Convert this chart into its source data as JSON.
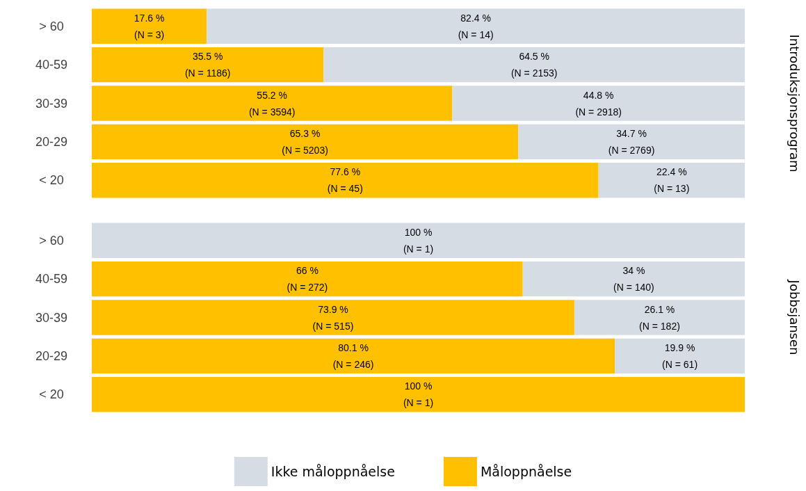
{
  "chart_data": [
    {
      "type": "bar",
      "orientation": "horizontal",
      "stacked": true,
      "y2label": "Introduksjonsprogram",
      "categories": [
        "> 60",
        "40-59",
        "30-39",
        "20-29",
        "< 20"
      ],
      "xlim": [
        0,
        100
      ],
      "tick_labels": "y",
      "legend": false,
      "series": [
        {
          "color": "#ffc000",
          "values": [
            17.6,
            35.5,
            55.2,
            65.3,
            77.6
          ],
          "value_labels": [
            "17.6 %\n(N = 3)",
            "35.5 %\n(N = 1186)",
            "55.2 %\n(N = 3594)",
            "65.3 %\n(N = 5203)",
            "77.6 %\n(N = 45)"
          ]
        },
        {
          "color": "#d6dce4",
          "values": [
            82.4,
            64.5,
            44.8,
            34.7,
            22.4
          ],
          "value_labels": [
            "82.4 %\n(N = 14)",
            "64.5 %\n(N = 2153)",
            "44.8 %\n(N = 2918)",
            "34.7 %\n(N = 2769)",
            "22.4 %\n(N = 13)"
          ]
        }
      ]
    },
    {
      "type": "bar",
      "orientation": "horizontal",
      "stacked": true,
      "y2label": "Jobbsjansen",
      "categories": [
        "> 60",
        "40-59",
        "30-39",
        "20-29",
        "< 20"
      ],
      "xlim": [
        0,
        100
      ],
      "tick_labels": "y",
      "legend": "bottom",
      "series": [
        {
          "name": "Måloppnåelse",
          "color": "#ffc000",
          "values": [
            0,
            66,
            73.9,
            80.1,
            100
          ],
          "value_labels": [
            null,
            "66 %\n(N = 272)",
            "73.9 %\n(N = 515)",
            "80.1 %\n(N = 246)",
            "100 %\n(N = 1)"
          ]
        },
        {
          "name": "Ikke måloppnåelse",
          "color": "#d6dce4",
          "values": [
            100,
            34,
            26.1,
            19.9,
            0
          ],
          "value_labels": [
            "100 %\n(N = 1)",
            "34 %\n(N = 140)",
            "26.1 %\n(N = 182)",
            "19.9 %\n(N = 61)",
            null
          ]
        }
      ]
    }
  ]
}
